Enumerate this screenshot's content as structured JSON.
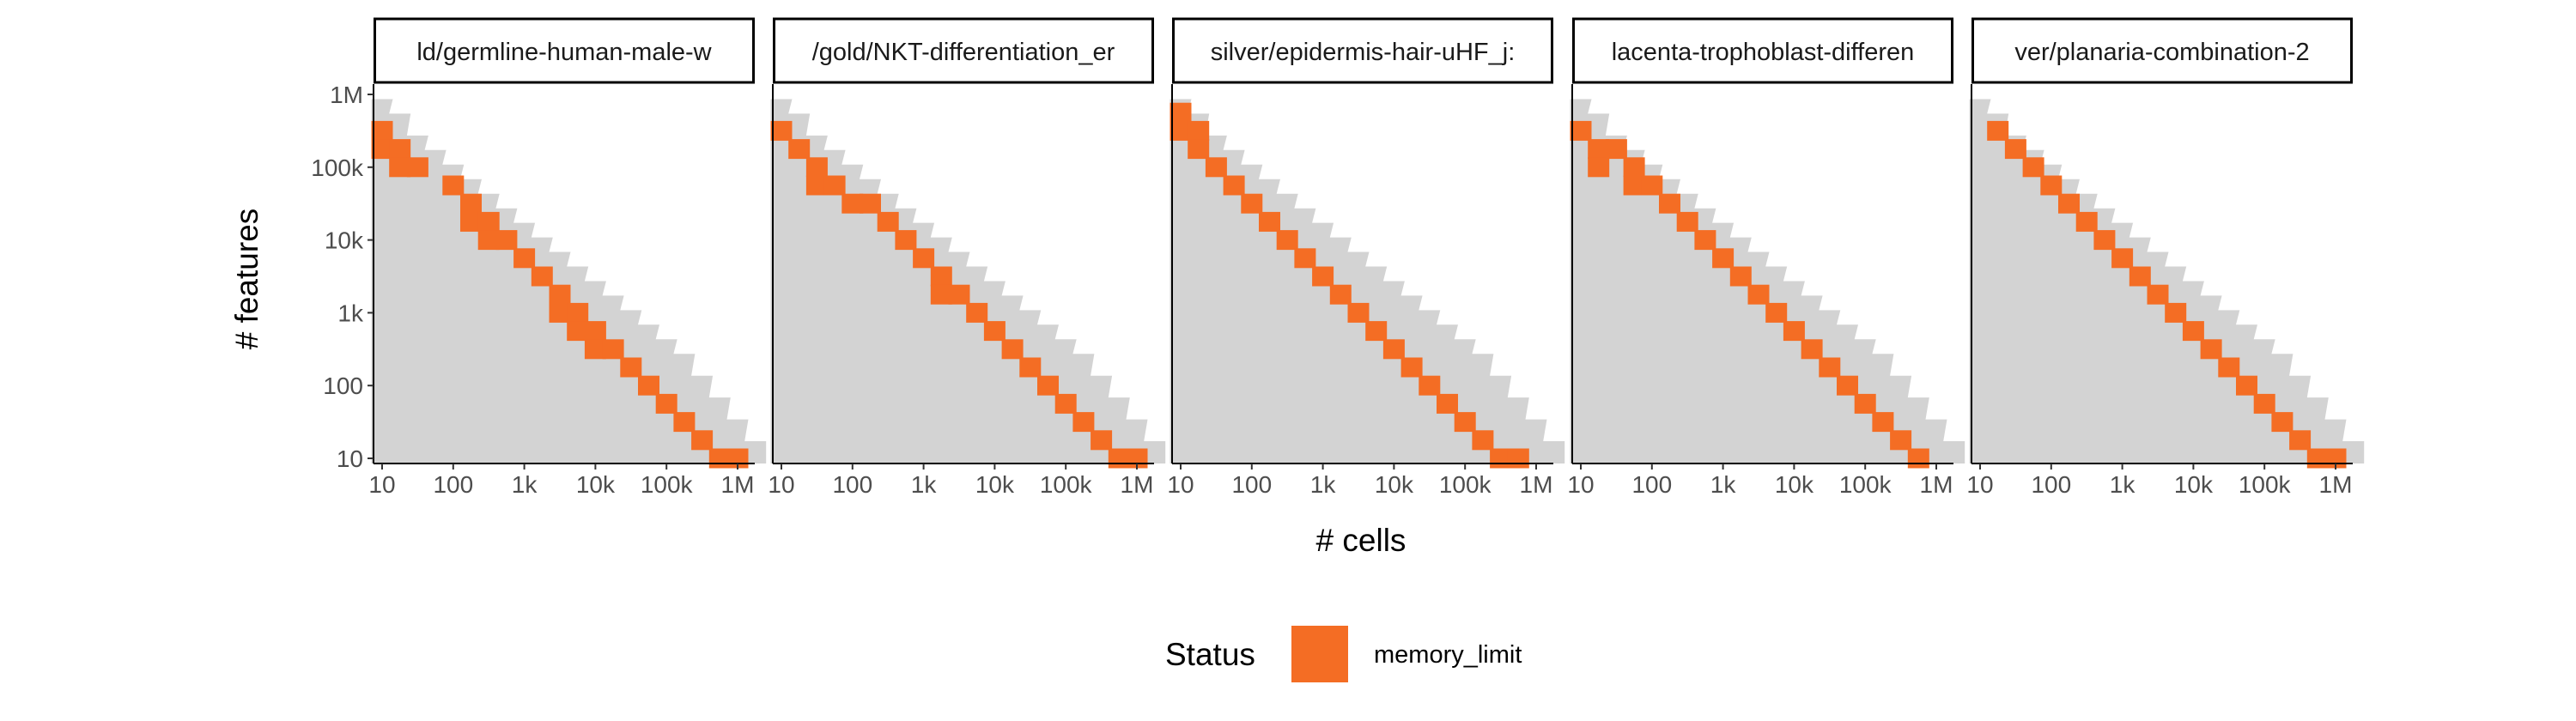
{
  "chart_data": {
    "type": "heatmap",
    "xlabel": "# cells",
    "ylabel": "# features",
    "x_ticks": [
      "10",
      "100",
      "1k",
      "10k",
      "100k",
      "1M"
    ],
    "y_ticks": [
      "1M",
      "100k",
      "10k",
      "1k",
      "100",
      "10"
    ],
    "x_range_log10": [
      1,
      6
    ],
    "y_range_log10": [
      1,
      6
    ],
    "grid": false,
    "scale": "log10",
    "colors": {
      "memory_limit": "#f46d24",
      "no_result": "#d3d3d3",
      "panel_bg": "#ffffff"
    },
    "legend": {
      "title": "Status",
      "position": "bottom",
      "entries": [
        {
          "label": "memory_limit",
          "color": "#f46d24"
        }
      ]
    },
    "panels": [
      {
        "title": "ld/germline-human-male-w",
        "grey_cells": [
          [
            1.0,
            5.8
          ],
          [
            1.25,
            5.6
          ],
          [
            1.5,
            5.3
          ],
          [
            1.75,
            5.1
          ],
          [
            2.0,
            4.9
          ],
          [
            2.25,
            4.7
          ],
          [
            2.5,
            4.5
          ],
          [
            2.75,
            4.3
          ],
          [
            3.0,
            4.1
          ],
          [
            3.25,
            3.9
          ],
          [
            3.5,
            3.7
          ],
          [
            3.75,
            3.5
          ],
          [
            4.0,
            3.3
          ],
          [
            4.25,
            3.1
          ],
          [
            4.5,
            2.9
          ],
          [
            4.75,
            2.7
          ],
          [
            5.0,
            2.5
          ],
          [
            5.25,
            2.3
          ],
          [
            5.5,
            2.0
          ],
          [
            5.75,
            1.7
          ],
          [
            6.0,
            1.4
          ],
          [
            6.25,
            1.1
          ]
        ],
        "memory_limit_cells": [
          [
            1.0,
            5.5
          ],
          [
            1.0,
            5.25
          ],
          [
            1.25,
            5.25
          ],
          [
            1.25,
            5.0
          ],
          [
            1.5,
            5.0
          ],
          [
            2.0,
            4.75
          ],
          [
            2.25,
            4.5
          ],
          [
            2.25,
            4.25
          ],
          [
            2.5,
            4.25
          ],
          [
            2.5,
            4.0
          ],
          [
            2.75,
            4.0
          ],
          [
            3.0,
            3.75
          ],
          [
            3.25,
            3.5
          ],
          [
            3.5,
            3.25
          ],
          [
            3.5,
            3.0
          ],
          [
            3.75,
            3.0
          ],
          [
            3.75,
            2.75
          ],
          [
            4.0,
            2.75
          ],
          [
            4.0,
            2.5
          ],
          [
            4.25,
            2.5
          ],
          [
            4.5,
            2.25
          ],
          [
            4.75,
            2.0
          ],
          [
            5.0,
            1.75
          ],
          [
            5.25,
            1.5
          ],
          [
            5.5,
            1.25
          ],
          [
            5.75,
            1.0
          ],
          [
            6.0,
            1.0
          ]
        ]
      },
      {
        "title": "/gold/NKT-differentiation_er",
        "grey_cells": [
          [
            1.0,
            5.8
          ],
          [
            1.25,
            5.6
          ],
          [
            1.5,
            5.3
          ],
          [
            1.75,
            5.1
          ],
          [
            2.0,
            4.9
          ],
          [
            2.25,
            4.7
          ],
          [
            2.5,
            4.5
          ],
          [
            2.75,
            4.3
          ],
          [
            3.0,
            4.1
          ],
          [
            3.25,
            3.9
          ],
          [
            3.5,
            3.7
          ],
          [
            3.75,
            3.5
          ],
          [
            4.0,
            3.3
          ],
          [
            4.25,
            3.1
          ],
          [
            4.5,
            2.9
          ],
          [
            4.75,
            2.7
          ],
          [
            5.0,
            2.5
          ],
          [
            5.25,
            2.3
          ],
          [
            5.5,
            2.0
          ],
          [
            5.75,
            1.7
          ],
          [
            6.0,
            1.4
          ],
          [
            6.25,
            1.1
          ]
        ],
        "memory_limit_cells": [
          [
            1.0,
            5.5
          ],
          [
            1.25,
            5.25
          ],
          [
            1.5,
            5.0
          ],
          [
            1.5,
            4.75
          ],
          [
            1.75,
            4.75
          ],
          [
            2.0,
            4.5
          ],
          [
            2.25,
            4.5
          ],
          [
            2.5,
            4.25
          ],
          [
            2.75,
            4.0
          ],
          [
            3.0,
            3.75
          ],
          [
            3.25,
            3.5
          ],
          [
            3.25,
            3.25
          ],
          [
            3.5,
            3.25
          ],
          [
            3.75,
            3.0
          ],
          [
            4.0,
            2.75
          ],
          [
            4.25,
            2.5
          ],
          [
            4.5,
            2.25
          ],
          [
            4.75,
            2.0
          ],
          [
            5.0,
            1.75
          ],
          [
            5.25,
            1.5
          ],
          [
            5.5,
            1.25
          ],
          [
            5.75,
            1.0
          ],
          [
            6.0,
            1.0
          ]
        ]
      },
      {
        "title": "silver/epidermis-hair-uHF_j:",
        "grey_cells": [
          [
            1.0,
            5.8
          ],
          [
            1.25,
            5.6
          ],
          [
            1.5,
            5.3
          ],
          [
            1.75,
            5.1
          ],
          [
            2.0,
            4.9
          ],
          [
            2.25,
            4.7
          ],
          [
            2.5,
            4.5
          ],
          [
            2.75,
            4.3
          ],
          [
            3.0,
            4.1
          ],
          [
            3.25,
            3.9
          ],
          [
            3.5,
            3.7
          ],
          [
            3.75,
            3.5
          ],
          [
            4.0,
            3.3
          ],
          [
            4.25,
            3.1
          ],
          [
            4.5,
            2.9
          ],
          [
            4.75,
            2.7
          ],
          [
            5.0,
            2.5
          ],
          [
            5.25,
            2.3
          ],
          [
            5.5,
            2.0
          ],
          [
            5.75,
            1.7
          ],
          [
            6.0,
            1.4
          ],
          [
            6.25,
            1.1
          ]
        ],
        "memory_limit_cells": [
          [
            1.0,
            5.75
          ],
          [
            1.0,
            5.5
          ],
          [
            1.25,
            5.5
          ],
          [
            1.25,
            5.25
          ],
          [
            1.5,
            5.0
          ],
          [
            1.75,
            4.75
          ],
          [
            2.0,
            4.5
          ],
          [
            2.25,
            4.25
          ],
          [
            2.5,
            4.0
          ],
          [
            2.75,
            3.75
          ],
          [
            3.0,
            3.5
          ],
          [
            3.25,
            3.25
          ],
          [
            3.5,
            3.0
          ],
          [
            3.75,
            2.75
          ],
          [
            4.0,
            2.5
          ],
          [
            4.25,
            2.25
          ],
          [
            4.5,
            2.0
          ],
          [
            4.75,
            1.75
          ],
          [
            5.0,
            1.5
          ],
          [
            5.25,
            1.25
          ],
          [
            5.5,
            1.0
          ],
          [
            5.75,
            1.0
          ]
        ]
      },
      {
        "title": "lacenta-trophoblast-differen",
        "grey_cells": [
          [
            1.0,
            5.8
          ],
          [
            1.25,
            5.6
          ],
          [
            1.5,
            5.3
          ],
          [
            1.75,
            5.1
          ],
          [
            2.0,
            4.9
          ],
          [
            2.25,
            4.7
          ],
          [
            2.5,
            4.5
          ],
          [
            2.75,
            4.3
          ],
          [
            3.0,
            4.1
          ],
          [
            3.25,
            3.9
          ],
          [
            3.5,
            3.7
          ],
          [
            3.75,
            3.5
          ],
          [
            4.0,
            3.3
          ],
          [
            4.25,
            3.1
          ],
          [
            4.5,
            2.9
          ],
          [
            4.75,
            2.7
          ],
          [
            5.0,
            2.5
          ],
          [
            5.25,
            2.3
          ],
          [
            5.5,
            2.0
          ],
          [
            5.75,
            1.7
          ],
          [
            6.0,
            1.4
          ],
          [
            6.25,
            1.1
          ]
        ],
        "memory_limit_cells": [
          [
            1.0,
            5.5
          ],
          [
            1.25,
            5.25
          ],
          [
            1.25,
            5.0
          ],
          [
            1.5,
            5.25
          ],
          [
            1.75,
            5.0
          ],
          [
            1.75,
            4.75
          ],
          [
            2.0,
            4.75
          ],
          [
            2.25,
            4.5
          ],
          [
            2.5,
            4.25
          ],
          [
            2.75,
            4.0
          ],
          [
            3.0,
            3.75
          ],
          [
            3.25,
            3.5
          ],
          [
            3.5,
            3.25
          ],
          [
            3.75,
            3.0
          ],
          [
            4.0,
            2.75
          ],
          [
            4.25,
            2.5
          ],
          [
            4.5,
            2.25
          ],
          [
            4.75,
            2.0
          ],
          [
            5.0,
            1.75
          ],
          [
            5.25,
            1.5
          ],
          [
            5.5,
            1.25
          ],
          [
            5.75,
            1.0
          ]
        ]
      },
      {
        "title": "ver/planaria-combination-2",
        "grey_cells": [
          [
            1.0,
            5.8
          ],
          [
            1.25,
            5.6
          ],
          [
            1.5,
            5.3
          ],
          [
            1.75,
            5.1
          ],
          [
            2.0,
            4.9
          ],
          [
            2.25,
            4.7
          ],
          [
            2.5,
            4.5
          ],
          [
            2.75,
            4.3
          ],
          [
            3.0,
            4.1
          ],
          [
            3.25,
            3.9
          ],
          [
            3.5,
            3.7
          ],
          [
            3.75,
            3.5
          ],
          [
            4.0,
            3.3
          ],
          [
            4.25,
            3.1
          ],
          [
            4.5,
            2.9
          ],
          [
            4.75,
            2.7
          ],
          [
            5.0,
            2.5
          ],
          [
            5.25,
            2.3
          ],
          [
            5.5,
            2.0
          ],
          [
            5.75,
            1.7
          ],
          [
            6.0,
            1.4
          ],
          [
            6.25,
            1.1
          ]
        ],
        "memory_limit_cells": [
          [
            1.25,
            5.5
          ],
          [
            1.5,
            5.25
          ],
          [
            1.75,
            5.0
          ],
          [
            2.0,
            4.75
          ],
          [
            2.25,
            4.5
          ],
          [
            2.5,
            4.25
          ],
          [
            2.75,
            4.0
          ],
          [
            3.0,
            3.75
          ],
          [
            3.25,
            3.5
          ],
          [
            3.5,
            3.25
          ],
          [
            3.75,
            3.0
          ],
          [
            4.0,
            2.75
          ],
          [
            4.25,
            2.5
          ],
          [
            4.5,
            2.25
          ],
          [
            4.75,
            2.0
          ],
          [
            5.0,
            1.75
          ],
          [
            5.25,
            1.5
          ],
          [
            5.5,
            1.25
          ],
          [
            5.75,
            1.0
          ],
          [
            6.0,
            1.0
          ]
        ]
      }
    ]
  }
}
